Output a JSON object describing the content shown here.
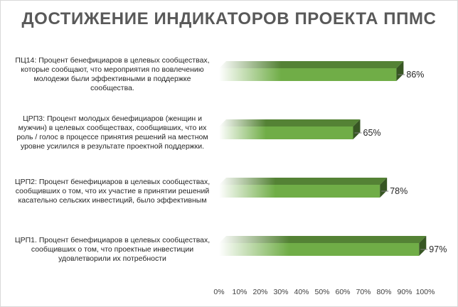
{
  "chart_data": {
    "type": "bar",
    "orientation": "horizontal",
    "title": "ДОСТИЖЕНИЕ ИНДИКАТОРОВ ПРОЕКТА ППМС",
    "categories": [
      "ПЦ14: Процент бенефициаров в целевых сообществах, которые сообщают, что мероприятия по вовлечению молодежи были эффективными в поддержке сообщества.",
      "ЦРП3: Процент молодых бенефициаров (женщин и мужчин)  в целевых сообществах, сообщивших, что их роль / голос в процессе принятия решений на местном уровне усилился в результате проектной поддержки.",
      "ЦРП2: Процент бенефициаров в целевых сообществах, сообщивших о том, что их участие в принятии решений касательно сельских инвестиций, было эффективным",
      "ЦРП1. Процент бенефициаров в целевых сообществах, сообщивших о том, что проектные инвестиции удовлетворили их потребности"
    ],
    "category_lines": [
      [
        "ПЦ14: Процент бенефициаров в целевых сообществах,",
        "которые сообщают, что мероприятия по вовлечению",
        "молодежи были эффективными в поддержке",
        "сообщества."
      ],
      [
        "ЦРП3: Процент молодых бенефициаров (женщин и",
        "мужчин)  в целевых сообществах, сообщивших, что их",
        "роль / голос в процессе принятия решений на местном",
        "уровне усилился в результате проектной поддержки."
      ],
      [
        "ЦРП2: Процент бенефициаров в целевых сообществах,",
        "сообщивших о том, что их участие в принятии решений",
        "касательно сельских инвестиций, было эффективным"
      ],
      [
        "ЦРП1. Процент бенефициаров в целевых сообществах,",
        "сообщивших о том, что проектные инвестиции",
        "удовлетворили их потребности"
      ]
    ],
    "values": [
      86,
      65,
      78,
      97
    ],
    "data_labels": [
      "86%",
      "65%",
      "78%",
      "97%"
    ],
    "xlim": [
      0,
      100
    ],
    "x_ticks": [
      0,
      10,
      20,
      30,
      40,
      50,
      60,
      70,
      80,
      90,
      100
    ],
    "x_tick_labels": [
      "0%",
      "10%",
      "20%",
      "30%",
      "40%",
      "50%",
      "60%",
      "70%",
      "80%",
      "90%",
      "100%"
    ],
    "xlabel": "",
    "ylabel": "",
    "grid": false,
    "legend": "none",
    "style": "3d-bars-gradient",
    "colors": {
      "bar_front": "#70ad47",
      "bar_front_fade": "#ffffff",
      "bar_top": "#548235",
      "bar_side": "#375623",
      "leader_line": "#7f7f7f"
    }
  }
}
